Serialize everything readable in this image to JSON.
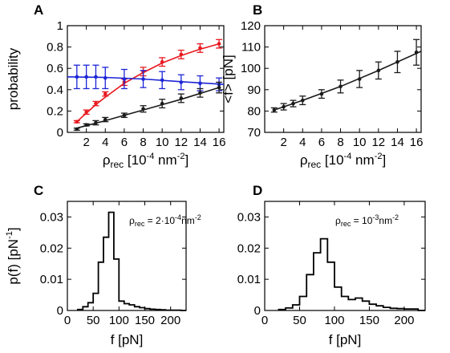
{
  "chart_data": [
    {
      "panel": "A",
      "type": "line",
      "xlabel": {
        "main": "ρ",
        "sub": "rec",
        "unit_pre": "[10",
        "unit_exp": "-4",
        "unit_post": " nm",
        "unit_exp2": "-2",
        "unit_close": "]"
      },
      "ylabel": "probability",
      "xlim": [
        0,
        16.5
      ],
      "ylim": [
        0,
        1
      ],
      "xticks": [
        2,
        4,
        6,
        8,
        10,
        12,
        14,
        16
      ],
      "yticks": [
        0,
        0.2,
        0.4,
        0.6,
        0.8,
        1
      ],
      "yticklabels": [
        "0",
        "0.2",
        "0.4",
        "0.6",
        "0.8",
        "1"
      ],
      "series": [
        {
          "color": "#e8181f",
          "x": [
            1,
            2,
            3,
            4,
            6,
            8,
            10,
            12,
            14,
            16
          ],
          "y": [
            0.1,
            0.19,
            0.27,
            0.36,
            0.47,
            0.57,
            0.66,
            0.73,
            0.79,
            0.83
          ],
          "err": [
            0.01,
            0.02,
            0.02,
            0.02,
            0.03,
            0.04,
            0.04,
            0.04,
            0.04,
            0.04
          ],
          "fit": [
            [
              1,
              0.1
            ],
            [
              2,
              0.18
            ],
            [
              3,
              0.26
            ],
            [
              4,
              0.33
            ],
            [
              6,
              0.46
            ],
            [
              8,
              0.56
            ],
            [
              10,
              0.65
            ],
            [
              12,
              0.72
            ],
            [
              14,
              0.78
            ],
            [
              16,
              0.83
            ]
          ]
        },
        {
          "color": "#1c25d6",
          "x": [
            1,
            2,
            3,
            4,
            6,
            8,
            10,
            12,
            14,
            16
          ],
          "y": [
            0.52,
            0.52,
            0.52,
            0.51,
            0.5,
            0.5,
            0.49,
            0.47,
            0.46,
            0.45
          ],
          "err": [
            0.11,
            0.11,
            0.11,
            0.1,
            0.09,
            0.08,
            0.08,
            0.07,
            0.07,
            0.06
          ],
          "fit": [
            [
              0,
              0.52
            ],
            [
              4,
              0.515
            ],
            [
              8,
              0.5
            ],
            [
              12,
              0.475
            ],
            [
              16.5,
              0.45
            ]
          ]
        },
        {
          "color": "#1a1a1a",
          "x": [
            1,
            2,
            3,
            4,
            6,
            8,
            10,
            12,
            14,
            16
          ],
          "y": [
            0.03,
            0.07,
            0.09,
            0.12,
            0.16,
            0.22,
            0.27,
            0.32,
            0.37,
            0.42
          ],
          "err": [
            0.01,
            0.01,
            0.02,
            0.02,
            0.02,
            0.03,
            0.04,
            0.04,
            0.04,
            0.05
          ],
          "fit": [
            [
              1,
              0.04
            ],
            [
              4,
              0.11
            ],
            [
              8,
              0.21
            ],
            [
              12,
              0.31
            ],
            [
              16,
              0.42
            ]
          ]
        }
      ]
    },
    {
      "panel": "B",
      "type": "line",
      "xlabel": {
        "main": "ρ",
        "sub": "rec",
        "unit_pre": "[10",
        "unit_exp": "-4",
        "unit_post": " nm",
        "unit_exp2": "-2",
        "unit_close": "]"
      },
      "ylabel": "<f>  [pN]",
      "xlim": [
        0,
        16.5
      ],
      "ylim": [
        70,
        120
      ],
      "xticks": [
        2,
        4,
        6,
        8,
        10,
        12,
        14,
        16
      ],
      "yticks": [
        70,
        80,
        90,
        100,
        110,
        120
      ],
      "series": [
        {
          "color": "#1a1a1a",
          "x": [
            1,
            2,
            3,
            4,
            6,
            8,
            10,
            12,
            14,
            16
          ],
          "y": [
            80.5,
            82,
            83.5,
            85,
            88,
            91.5,
            95,
            99,
            103,
            107.5
          ],
          "err": [
            1,
            1.5,
            1.5,
            2,
            2,
            3,
            4,
            4,
            5,
            6
          ],
          "fit": [
            [
              1,
              80.5
            ],
            [
              4,
              85
            ],
            [
              8,
              91.5
            ],
            [
              12,
              99
            ],
            [
              16.5,
              108
            ]
          ]
        }
      ]
    },
    {
      "panel": "C",
      "type": "line",
      "subtype": "histogram",
      "annotation": {
        "main": "ρ",
        "sub": "rec",
        "text": " = 2·10",
        "exp": "-4",
        "post": "nm",
        "exp2": "-2"
      },
      "xlabel": "f  [pN]",
      "ylabel": {
        "main": "p(f)  [pN",
        "exp": "-1",
        "close": "]"
      },
      "xlim": [
        0,
        230
      ],
      "ylim": [
        0,
        0.035
      ],
      "xticks": [
        0,
        50,
        100,
        150,
        200
      ],
      "yticks": [
        0,
        0.01,
        0.02,
        0.03
      ],
      "yticklabels": [
        "0",
        "0.01",
        "0.02",
        "0.03"
      ],
      "bin_edges": [
        20,
        30,
        40,
        50,
        60,
        70,
        80,
        90,
        100,
        110,
        120,
        130,
        140,
        150,
        160,
        170,
        180,
        190,
        200,
        210,
        220,
        230
      ],
      "values": [
        0.0003,
        0.0012,
        0.0025,
        0.0055,
        0.0155,
        0.0235,
        0.0315,
        0.0165,
        0.003,
        0.0022,
        0.0018,
        0.0012,
        0.0009,
        0.0006,
        0.0004,
        0.0003,
        0.0002,
        0.0001,
        0.0001,
        0.0001,
        0.0
      ]
    },
    {
      "panel": "D",
      "type": "line",
      "subtype": "histogram",
      "annotation": {
        "main": "ρ",
        "sub": "rec",
        "text": " = 10",
        "exp": "-3",
        "post": "nm",
        "exp2": "-2"
      },
      "xlabel": "f  [pN]",
      "ylabel": "",
      "xlim": [
        0,
        230
      ],
      "ylim": [
        0,
        0.035
      ],
      "xticks": [
        0,
        50,
        100,
        150,
        200
      ],
      "yticks": [
        0,
        0.01,
        0.02,
        0.03
      ],
      "yticklabels": [
        "0",
        "0.01",
        "0.02",
        "0.03"
      ],
      "bin_edges": [
        20,
        30,
        40,
        50,
        60,
        70,
        80,
        90,
        100,
        110,
        120,
        130,
        140,
        150,
        160,
        170,
        180,
        190,
        200,
        210,
        220,
        230
      ],
      "values": [
        0.0003,
        0.0008,
        0.0018,
        0.0045,
        0.0115,
        0.0185,
        0.023,
        0.0155,
        0.0075,
        0.0045,
        0.0035,
        0.004,
        0.003,
        0.002,
        0.0015,
        0.001,
        0.0007,
        0.0006,
        0.0005,
        0.0005,
        0.0
      ]
    }
  ]
}
